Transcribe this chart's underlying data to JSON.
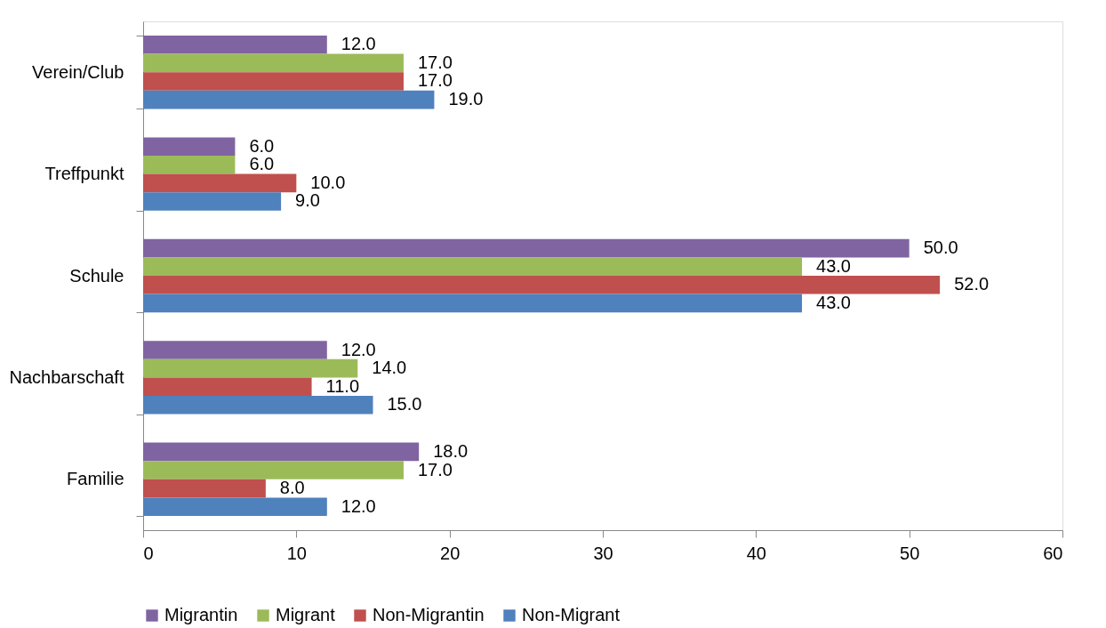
{
  "chart_data": {
    "type": "bar",
    "orientation": "horizontal",
    "categories": [
      "Verein/Club",
      "Treffpunkt",
      "Schule",
      "Nachbarschaft",
      "Familie"
    ],
    "series": [
      {
        "name": "Migrantin",
        "color": "#8064a2",
        "values": [
          12,
          6,
          50,
          12,
          18
        ],
        "value_labels": [
          "12.0",
          "6.0",
          "50.0",
          "12.0",
          "18.0"
        ]
      },
      {
        "name": "Migrant",
        "color": "#9bbb59",
        "values": [
          17,
          6,
          43,
          14,
          17
        ],
        "value_labels": [
          "17.0",
          "6.0",
          "43.0",
          "14.0",
          "17.0"
        ]
      },
      {
        "name": "Non-Migrantin",
        "color": "#c0504d",
        "values": [
          17,
          10,
          52,
          11,
          8
        ],
        "value_labels": [
          "17.0",
          "10.0",
          "52.0",
          "11.0",
          "8.0"
        ]
      },
      {
        "name": "Non-Migrant",
        "color": "#4f81bd",
        "values": [
          19,
          9,
          43,
          15,
          12
        ],
        "value_labels": [
          "19.0",
          "9.0",
          "43.0",
          "15.0",
          "12.0"
        ]
      }
    ],
    "xlim": [
      0,
      60
    ],
    "xticks": [
      0,
      10,
      20,
      30,
      40,
      50,
      60
    ],
    "grid": false,
    "legend": "bottom"
  }
}
